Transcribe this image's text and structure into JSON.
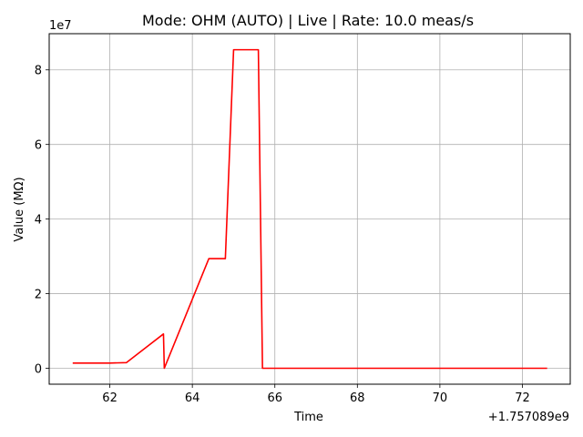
{
  "chart_data": {
    "type": "line",
    "title": "Mode: OHM (AUTO) | Live | Rate: 10.0 meas/s",
    "xlabel": "Time",
    "ylabel": "Value (MΩ)",
    "y_scale_label": "1e7",
    "x_offset_label": "+1.757089e9",
    "xlim": [
      60.53,
      73.16
    ],
    "ylim": [
      -4270000,
      89700000
    ],
    "x_ticks": [
      62,
      64,
      66,
      68,
      70,
      72
    ],
    "x_tick_labels": [
      "62",
      "64",
      "66",
      "68",
      "70",
      "72"
    ],
    "y_ticks": [
      0,
      20000000,
      40000000,
      60000000,
      80000000
    ],
    "y_tick_labels": [
      "0",
      "2",
      "4",
      "6",
      "8"
    ],
    "grid": true,
    "series": [
      {
        "color": "#ff0000",
        "x": [
          61.1,
          62.0,
          62.4,
          63.3,
          63.32,
          64.4,
          64.8,
          65.0,
          65.6,
          65.7,
          66.0,
          72.6
        ],
        "y": [
          1400000,
          1400000,
          1500000,
          9200000,
          0,
          29400000,
          29400000,
          85400000,
          85400000,
          0,
          0,
          0
        ]
      }
    ]
  }
}
